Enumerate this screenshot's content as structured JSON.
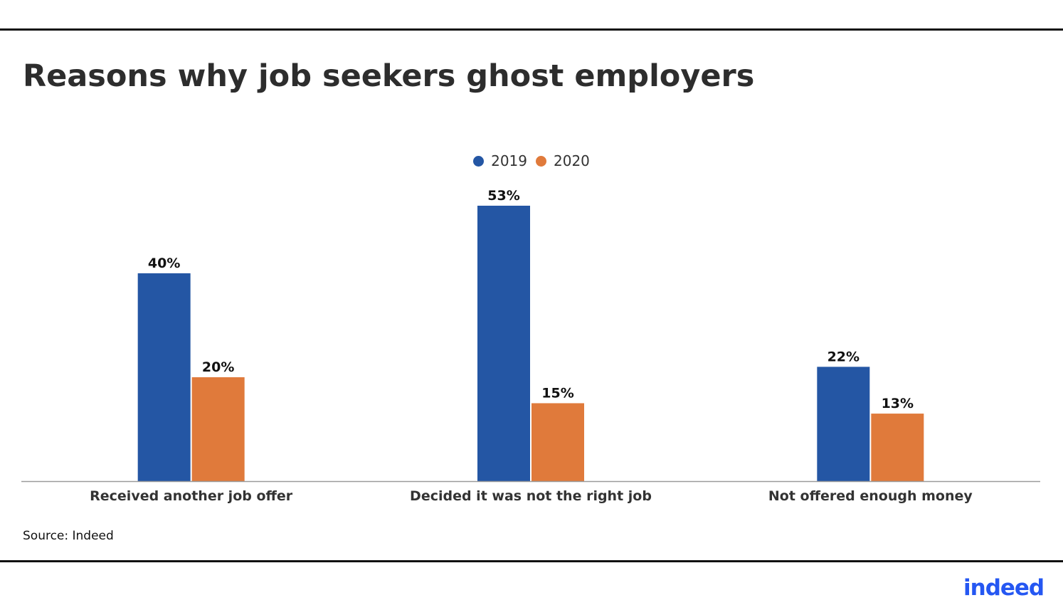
{
  "title": "Reasons why job seekers ghost employers",
  "source": "Source: Indeed",
  "logo_text": "indeed",
  "colors": {
    "series_2019": "#2456a4",
    "series_2020": "#e07a3b",
    "logo": "#2557f2"
  },
  "chart_data": {
    "type": "bar",
    "categories": [
      "Received another job offer",
      "Decided it was not the right job",
      "Not offered enough money"
    ],
    "series": [
      {
        "name": "2019",
        "values": [
          40,
          53,
          22
        ],
        "labels": [
          "40%",
          "53%",
          "22%"
        ]
      },
      {
        "name": "2020",
        "values": [
          20,
          15,
          13
        ],
        "labels": [
          "20%",
          "15%",
          "13%"
        ]
      }
    ],
    "ylim": [
      0,
      60
    ],
    "grid": false,
    "legend_position": "top-center",
    "data_labels": true
  }
}
